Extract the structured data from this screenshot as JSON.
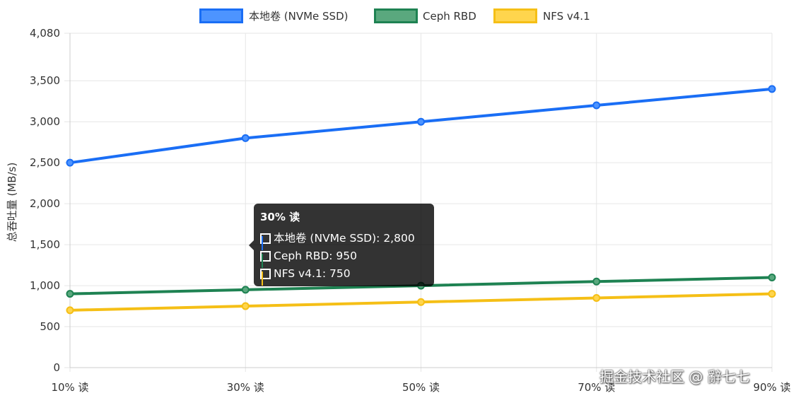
{
  "chart_data": {
    "type": "line",
    "categories": [
      "10% 读",
      "30% 读",
      "50% 读",
      "70% 读",
      "90% 读"
    ],
    "series": [
      {
        "name": "本地卷 (NVMe SSD)",
        "values": [
          2500,
          2800,
          3000,
          3200,
          3400
        ],
        "color": "#1a6ef5",
        "fill": "#4d94ff"
      },
      {
        "name": "Ceph RBD",
        "values": [
          900,
          950,
          1000,
          1050,
          1100
        ],
        "color": "#1e8252",
        "fill": "#5aa87e"
      },
      {
        "name": "NFS v4.1",
        "values": [
          700,
          750,
          800,
          850,
          900
        ],
        "color": "#f5bf16",
        "fill": "#ffd54d"
      }
    ],
    "ylabel": "总吞吐量 (MB/s)",
    "xlabel": "",
    "ylim": [
      0,
      4080
    ],
    "yticks": [
      0,
      500,
      1000,
      1500,
      2000,
      2500,
      3000,
      3500,
      4080
    ],
    "ytick_labels": [
      "0",
      "500",
      "1,000",
      "1,500",
      "2,000",
      "2,500",
      "3,000",
      "3,500",
      "4,080"
    ],
    "legend": "top-center",
    "grid": true
  },
  "tooltip": {
    "title": "30% 读",
    "rows": [
      {
        "text": "本地卷 (NVMe SSD): 2,800",
        "color": "#1a6ef5",
        "fill": "#4d94ff"
      },
      {
        "text": "Ceph RBD: 950",
        "color": "#1e8252",
        "fill": "#5aa87e"
      },
      {
        "text": "NFS v4.1: 750",
        "color": "#f5bf16",
        "fill": "#ffd54d"
      }
    ]
  },
  "watermark": "掘金技术社区 @ 辭七七"
}
